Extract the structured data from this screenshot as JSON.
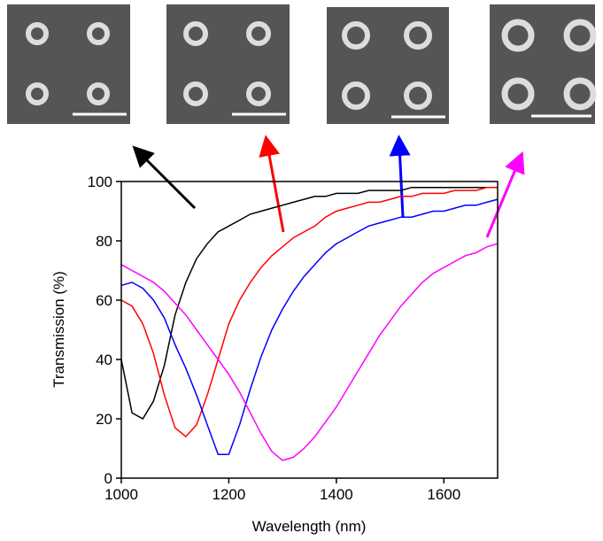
{
  "chart_data": {
    "type": "line",
    "x_label": "Wavelength (nm)",
    "y_label": "Transmission (%)",
    "x": [
      1000,
      1020,
      1040,
      1060,
      1080,
      1100,
      1120,
      1140,
      1160,
      1180,
      1200,
      1220,
      1240,
      1260,
      1280,
      1300,
      1320,
      1340,
      1360,
      1380,
      1400,
      1420,
      1440,
      1460,
      1480,
      1500,
      1520,
      1540,
      1560,
      1580,
      1600,
      1620,
      1640,
      1660,
      1680,
      1700
    ],
    "series": [
      {
        "color": "#000000",
        "values": [
          40,
          22,
          20,
          26,
          38,
          55,
          66,
          74,
          79,
          83,
          85,
          87,
          89,
          90,
          91,
          92,
          93,
          94,
          95,
          95,
          96,
          96,
          96,
          97,
          97,
          97,
          97,
          98,
          98,
          98,
          98,
          98,
          98,
          98,
          98,
          98
        ]
      },
      {
        "color": "#ff0000",
        "values": [
          60,
          58,
          52,
          42,
          28,
          17,
          14,
          18,
          28,
          40,
          52,
          60,
          66,
          71,
          75,
          78,
          81,
          83,
          85,
          88,
          90,
          91,
          92,
          93,
          93,
          94,
          95,
          95,
          96,
          96,
          96,
          97,
          97,
          97,
          98,
          98
        ]
      },
      {
        "color": "#0000ff",
        "values": [
          65,
          66,
          64,
          60,
          54,
          45,
          37,
          28,
          18,
          8,
          8,
          18,
          30,
          41,
          50,
          57,
          63,
          68,
          72,
          76,
          79,
          81,
          83,
          85,
          86,
          87,
          88,
          88,
          89,
          90,
          90,
          91,
          92,
          92,
          93,
          94
        ]
      },
      {
        "color": "#ff00ff",
        "values": [
          72,
          70,
          68,
          66,
          63,
          59,
          55,
          50,
          45,
          40,
          35,
          29,
          22,
          15,
          9,
          6,
          7,
          10,
          14,
          19,
          24,
          30,
          36,
          42,
          48,
          53,
          58,
          62,
          66,
          69,
          71,
          73,
          75,
          76,
          78,
          79
        ]
      }
    ],
    "xlim": [
      1000,
      1700
    ],
    "xticks": [
      1000,
      1200,
      1400,
      1600
    ],
    "ylim": [
      0,
      100
    ],
    "yticks": [
      0,
      20,
      40,
      60,
      80,
      100
    ]
  }
}
